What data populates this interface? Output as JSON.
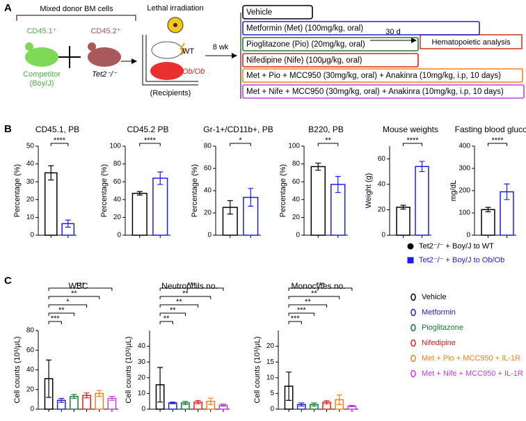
{
  "panel_labels": [
    "A",
    "B",
    "C"
  ],
  "panel_a": {
    "donor_title": "Mixed donor BM cells",
    "cd451": "CD45.1⁺",
    "cd452": "CD45.2⁺",
    "competitor": "Competitor",
    "boyj": "(Boy/J)",
    "tet2": "Tet2⁻/⁻",
    "irradiation": "Lethal irradiation",
    "wt": "WT",
    "obob": "Ob/Ob",
    "recipients": "(Recipients)",
    "weeks": "8 wk",
    "treatments": [
      {
        "label": "Vehicle",
        "color": "#000000"
      },
      {
        "label": "Metformin (Met) (100mg/kg, oral)",
        "color": "#2222cc"
      },
      {
        "label": "Pioglitazone (Pio) (20mg/kg, oral)",
        "color": "#1a7a3a"
      },
      {
        "label": "Nifedipine (Nife)  (100μg/kg, oral)",
        "color": "#e02020"
      },
      {
        "label": "Met + Pio + MCC950 (30mg/kg, oral) + Anakinra (10mg/kg, i.p, 10 days)",
        "color": "#f08020"
      },
      {
        "label": "Met + Nife + MCC950 (30mg/kg, oral) + Anakinra (10mg/kg, i.p, 10 days)",
        "color": "#c040e0"
      }
    ],
    "days": "30 d",
    "analysis": "Hematopoietic analysis"
  },
  "chart_data": [
    {
      "type": "bar",
      "title": "CD45.1, PB",
      "ylabel": "Percentage (%)",
      "categories": [
        null,
        null
      ],
      "values": [
        35,
        6.5
      ],
      "errors": [
        4,
        2
      ],
      "colors": [
        "#000000",
        "#1a1aff"
      ],
      "ylim": [
        0,
        50
      ],
      "yticks": [
        0,
        10,
        20,
        30,
        40,
        50
      ],
      "significance": [
        "****"
      ]
    },
    {
      "type": "bar",
      "title": "CD45.2 PB",
      "ylabel": "Percentage (%)",
      "categories": [
        null,
        null
      ],
      "values": [
        47,
        64
      ],
      "errors": [
        2,
        7
      ],
      "colors": [
        "#000000",
        "#1a1aff"
      ],
      "ylim": [
        0,
        100
      ],
      "yticks": [
        0,
        20,
        40,
        60,
        80,
        100
      ],
      "significance": [
        "****"
      ]
    },
    {
      "type": "bar",
      "title": "Gr-1+/CD11b+, PB",
      "ylabel": "Percentage (%)",
      "categories": [
        null,
        null
      ],
      "values": [
        25,
        34
      ],
      "errors": [
        6,
        8
      ],
      "colors": [
        "#000000",
        "#1a1aff"
      ],
      "ylim": [
        0,
        80
      ],
      "yticks": [
        0,
        20,
        40,
        60,
        80
      ],
      "significance": [
        "*"
      ]
    },
    {
      "type": "bar",
      "title": "B220, PB",
      "ylabel": "Percentage (%)",
      "categories": [
        null,
        null
      ],
      "values": [
        77,
        57
      ],
      "errors": [
        4,
        9
      ],
      "colors": [
        "#000000",
        "#1a1aff"
      ],
      "ylim": [
        0,
        100
      ],
      "yticks": [
        0,
        20,
        40,
        60,
        80,
        100
      ],
      "significance": [
        "**"
      ]
    },
    {
      "type": "bar",
      "title": "Mouse weights",
      "ylabel": "Weight (g)",
      "categories": [
        null,
        null
      ],
      "values": [
        22,
        54
      ],
      "errors": [
        1.5,
        4
      ],
      "colors": [
        "#000000",
        "#1a1aff"
      ],
      "ylim": [
        0,
        70
      ],
      "yticks": [
        0,
        20,
        40,
        60
      ],
      "significance": [
        "****"
      ]
    },
    {
      "type": "bar",
      "title": "Fasting blood glucose",
      "ylabel": "mg/dL",
      "categories": [
        null,
        null
      ],
      "values": [
        115,
        195
      ],
      "errors": [
        10,
        35
      ],
      "colors": [
        "#000000",
        "#1a1aff"
      ],
      "ylim": [
        0,
        400
      ],
      "yticks": [
        0,
        100,
        200,
        300,
        400
      ],
      "significance": [
        "****"
      ]
    },
    {
      "type": "bar",
      "title": "WBC",
      "ylabel": "Cell counts (10³/μL)",
      "categories": [
        null,
        null,
        null,
        null,
        null,
        null
      ],
      "values": [
        31,
        9,
        13,
        14,
        16,
        11
      ],
      "errors": [
        19,
        2,
        2,
        2.5,
        3,
        2
      ],
      "colors": [
        "#000000",
        "#2222cc",
        "#1a7a3a",
        "#e02020",
        "#f08020",
        "#c040e0"
      ],
      "ylim": [
        0,
        80
      ],
      "yticks": [
        0,
        20,
        40,
        60,
        80
      ],
      "significance": [
        "***",
        "**",
        "*",
        "**",
        "***"
      ]
    },
    {
      "type": "bar",
      "title": "Neutrophils no.",
      "ylabel": "Cell counts (10³/μL)",
      "categories": [
        null,
        null,
        null,
        null,
        null,
        null
      ],
      "values": [
        15.5,
        4,
        4,
        4.5,
        5,
        2.5
      ],
      "errors": [
        11,
        0.5,
        1,
        1,
        2,
        0.7
      ],
      "colors": [
        "#000000",
        "#2222cc",
        "#1a7a3a",
        "#e02020",
        "#f08020",
        "#c040e0"
      ],
      "ylim": [
        0,
        50
      ],
      "yticks": [
        0,
        10,
        20,
        30,
        40
      ],
      "significance": [
        "**",
        "**",
        "**",
        "**",
        "***"
      ]
    },
    {
      "type": "bar",
      "title": "Monocytes no.",
      "ylabel": "Cell counts (10³/μL)",
      "categories": [
        null,
        null,
        null,
        null,
        null,
        null
      ],
      "values": [
        7.3,
        1.5,
        1.5,
        2.2,
        3,
        1
      ],
      "errors": [
        4.5,
        0.5,
        0.5,
        0.5,
        1.5,
        0.2
      ],
      "colors": [
        "#000000",
        "#2222cc",
        "#1a7a3a",
        "#e02020",
        "#f08020",
        "#c040e0"
      ],
      "ylim": [
        0,
        25
      ],
      "yticks": [
        0,
        5,
        10,
        15,
        20
      ],
      "significance": [
        "***",
        "***",
        "**",
        "**",
        "***"
      ]
    }
  ],
  "legend_b": [
    {
      "label": "Tet2⁻/⁻ + Boy/J to WT",
      "color": "#000000"
    },
    {
      "label": "Tet2⁻/⁻ + Boy/J to Ob/Ob",
      "color": "#1a1aff"
    }
  ],
  "legend_c": [
    {
      "label": "Vehicle",
      "color": "#000000"
    },
    {
      "label": "Metformin",
      "color": "#2222cc"
    },
    {
      "label": "Pioglitazone",
      "color": "#1a7a3a"
    },
    {
      "label": "Nifedipine",
      "color": "#e02020"
    },
    {
      "label": "Met + Pio + MCC950 + IL-1R",
      "color": "#f08020"
    },
    {
      "label": "Met + Nife + MCC950 + IL-1R",
      "color": "#c040e0"
    }
  ]
}
